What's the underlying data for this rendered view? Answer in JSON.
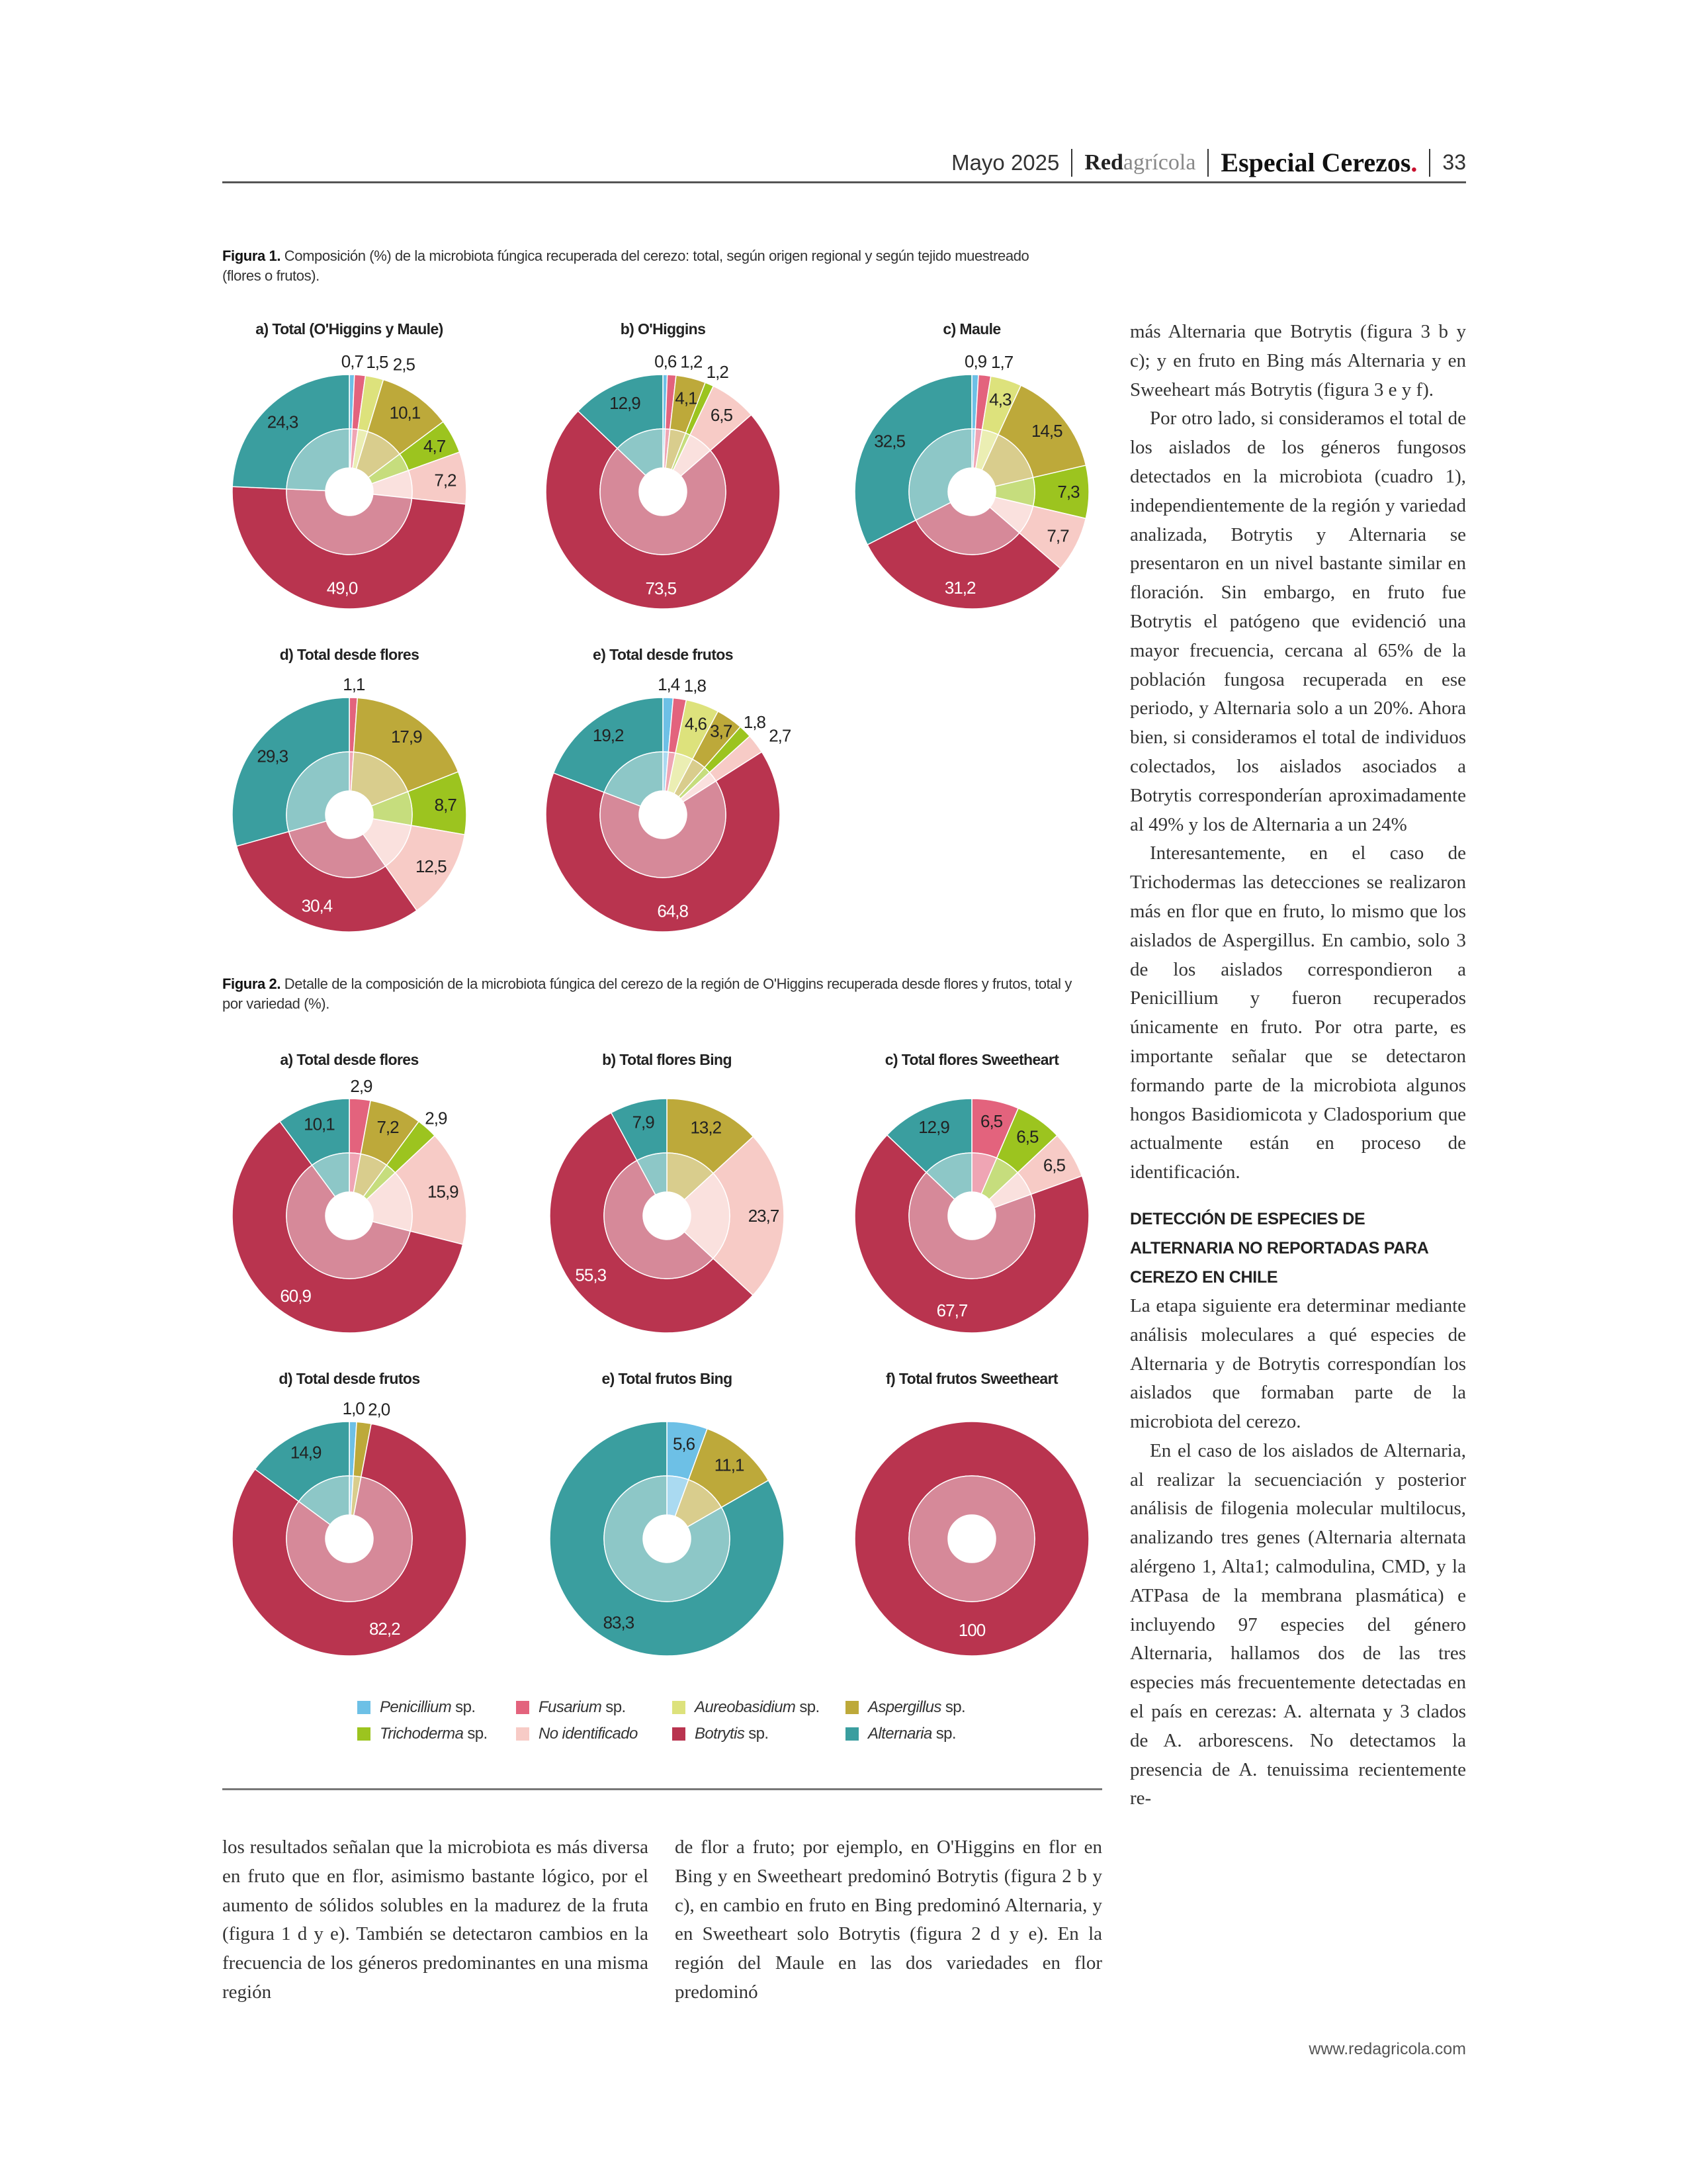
{
  "header": {
    "date": "Mayo 2025",
    "brand_bold": "Red",
    "brand_light": "agrícola",
    "section": "Especial Cerezos",
    "section_dot": ".",
    "page": "33"
  },
  "figure1": {
    "label": "Figura 1.",
    "caption": " Composición (%) de la microbiota fúngica recuperada del cerezo: total, según origen regional y según tejido muestreado (flores o frutos)."
  },
  "figure2": {
    "label": "Figura 2.",
    "caption": " Detalle de la composición de la microbiota fúngica del cerezo de la región de O'Higgins recuperada desde flores y frutos, total y por variedad (%)."
  },
  "legend": [
    {
      "name": "Penicillium",
      "suffix": " sp.",
      "color": "#6dc0e6"
    },
    {
      "name": "Fusarium",
      "suffix": " sp.",
      "color": "#e3637d"
    },
    {
      "name": "Aureobasidium",
      "suffix": " sp.",
      "color": "#dde27c"
    },
    {
      "name": "Aspergillus",
      "suffix": " sp.",
      "color": "#bda93a"
    },
    {
      "name": "Trichoderma",
      "suffix": " sp.",
      "color": "#9cc41f"
    },
    {
      "name": "No identificado",
      "suffix": "",
      "color": "#f7cbc6"
    },
    {
      "name": "Botrytis",
      "suffix": " sp.",
      "color": "#b9344f"
    },
    {
      "name": "Alternaria",
      "suffix": " sp.",
      "color": "#3a9e9f"
    }
  ],
  "chart_data": [
    {
      "type": "pie",
      "figure": 1,
      "title": "a) Total (O'Higgins y Maule)",
      "categories": [
        "Penicillium",
        "Fusarium",
        "Aureobasidium",
        "Aspergillus",
        "Trichoderma",
        "No identificado",
        "Botrytis",
        "Alternaria"
      ],
      "values": [
        0.7,
        1.5,
        2.5,
        10.1,
        4.7,
        7.2,
        49.0,
        24.3
      ],
      "labels": [
        "0,7",
        "1,5",
        "2,5",
        "10,1",
        "4,7",
        "7,2",
        "49,0",
        "24,3"
      ]
    },
    {
      "type": "pie",
      "figure": 1,
      "title": "b) O'Higgins",
      "categories": [
        "Penicillium",
        "Fusarium",
        "Aureobasidium",
        "Aspergillus",
        "Trichoderma",
        "No identificado",
        "Botrytis",
        "Alternaria"
      ],
      "values": [
        0.6,
        1.2,
        0,
        4.1,
        1.2,
        6.5,
        73.5,
        12.9
      ],
      "labels": [
        "0,6",
        "1,2",
        "",
        "4,1",
        "1,2",
        "6,5",
        "73,5",
        "12,9"
      ]
    },
    {
      "type": "pie",
      "figure": 1,
      "title": "c) Maule",
      "categories": [
        "Penicillium",
        "Fusarium",
        "Aureobasidium",
        "Aspergillus",
        "Trichoderma",
        "No identificado",
        "Botrytis",
        "Alternaria"
      ],
      "values": [
        0.9,
        1.7,
        4.3,
        14.5,
        7.3,
        7.7,
        31.2,
        32.5
      ],
      "labels": [
        "0,9",
        "1,7",
        "4,3",
        "14,5",
        "7,3",
        "7,7",
        "31,2",
        "32,5"
      ]
    },
    {
      "type": "pie",
      "figure": 1,
      "title": "d) Total desde flores",
      "categories": [
        "Penicillium",
        "Fusarium",
        "Aureobasidium",
        "Aspergillus",
        "Trichoderma",
        "No identificado",
        "Botrytis",
        "Alternaria"
      ],
      "values": [
        0,
        1.1,
        0,
        17.9,
        8.7,
        12.5,
        30.4,
        29.3
      ],
      "labels": [
        "",
        "1,1",
        "",
        "17,9",
        "8,7",
        "12,5",
        "30,4",
        "29,3"
      ]
    },
    {
      "type": "pie",
      "figure": 1,
      "title": "e) Total desde frutos",
      "categories": [
        "Penicillium",
        "Fusarium",
        "Aureobasidium",
        "Aspergillus",
        "Trichoderma",
        "No identificado",
        "Botrytis",
        "Alternaria"
      ],
      "values": [
        1.4,
        1.8,
        4.6,
        3.7,
        1.8,
        2.7,
        64.8,
        19.2
      ],
      "labels": [
        "1,4",
        "1,8",
        "4,6",
        "3,7",
        "1,8",
        "2,7",
        "64,8",
        "19,2"
      ]
    },
    {
      "type": "pie",
      "figure": 2,
      "title": "a) Total desde flores",
      "categories": [
        "Penicillium",
        "Fusarium",
        "Aureobasidium",
        "Aspergillus",
        "Trichoderma",
        "No identificado",
        "Botrytis",
        "Alternaria"
      ],
      "values": [
        0,
        2.9,
        0,
        7.2,
        2.9,
        15.9,
        60.9,
        10.1
      ],
      "labels": [
        "",
        "2,9",
        "",
        "7,2",
        "2,9",
        "15,9",
        "60,9",
        "10,1"
      ]
    },
    {
      "type": "pie",
      "figure": 2,
      "title": "b) Total flores Bing",
      "categories": [
        "Penicillium",
        "Fusarium",
        "Aureobasidium",
        "Aspergillus",
        "Trichoderma",
        "No identificado",
        "Botrytis",
        "Alternaria"
      ],
      "values": [
        0,
        0,
        0,
        13.2,
        0,
        23.7,
        55.3,
        7.9
      ],
      "labels": [
        "",
        "",
        "",
        "13,2",
        "",
        "23,7",
        "55,3",
        "7,9"
      ]
    },
    {
      "type": "pie",
      "figure": 2,
      "title": "c) Total flores Sweetheart",
      "categories": [
        "Penicillium",
        "Fusarium",
        "Aureobasidium",
        "Aspergillus",
        "Trichoderma",
        "No identificado",
        "Botrytis",
        "Alternaria"
      ],
      "values": [
        0,
        6.5,
        0,
        0,
        6.5,
        6.5,
        67.7,
        12.9
      ],
      "labels": [
        "",
        "6,5",
        "",
        "",
        "6,5",
        "6,5",
        "67,7",
        "12,9"
      ]
    },
    {
      "type": "pie",
      "figure": 2,
      "title": "d) Total desde frutos",
      "categories": [
        "Penicillium",
        "Fusarium",
        "Aureobasidium",
        "Aspergillus",
        "Trichoderma",
        "No identificado",
        "Botrytis",
        "Alternaria"
      ],
      "values": [
        1.0,
        0,
        0,
        2.0,
        0,
        0,
        82.2,
        14.9
      ],
      "labels": [
        "1,0",
        "",
        "",
        "2,0",
        "",
        "",
        "82,2",
        "14,9"
      ]
    },
    {
      "type": "pie",
      "figure": 2,
      "title": "e) Total frutos Bing",
      "categories": [
        "Penicillium",
        "Fusarium",
        "Aureobasidium",
        "Aspergillus",
        "Trichoderma",
        "No identificado",
        "Botrytis",
        "Alternaria"
      ],
      "values": [
        5.6,
        0,
        0,
        11.1,
        0,
        0,
        0,
        83.3
      ],
      "labels": [
        "5,6",
        "",
        "",
        "11,1",
        "",
        "",
        "",
        "83,3"
      ]
    },
    {
      "type": "pie",
      "figure": 2,
      "title": "f) Total frutos Sweetheart",
      "categories": [
        "Penicillium",
        "Fusarium",
        "Aureobasidium",
        "Aspergillus",
        "Trichoderma",
        "No identificado",
        "Botrytis",
        "Alternaria"
      ],
      "values": [
        0,
        0,
        0,
        0,
        0,
        0,
        100,
        0
      ],
      "labels": [
        "",
        "",
        "",
        "",
        "",
        "",
        "100",
        ""
      ]
    }
  ],
  "right_column": {
    "p1": "más Alternaria que Botrytis (figura 3 b y c); y en fruto en Bing más Alternaria y en Sweeheart más Botrytis (figura 3 e y f).",
    "p2": "Por otro lado, si consideramos el total de los aislados de los géneros fungosos detectados en la microbiota (cuadro 1), independientemente de la región y variedad analizada, Botrytis y Alternaria se presentaron en un nivel bastante similar en floración. Sin embargo, en fruto fue Botrytis el patógeno que evidenció una mayor frecuencia, cercana al 65% de la población fungosa recuperada en ese periodo, y Alternaria solo a un 20%. Ahora bien, si consideramos el total de individuos colectados, los aislados asociados a Botrytis corresponderían aproximadamente al 49% y los de Alternaria a un 24%",
    "p3": "Interesantemente, en el caso de Trichodermas las detecciones se realizaron más en flor que en fruto, lo mismo que los aislados de Aspergillus. En cambio, solo 3 de los aislados correspondieron a Penicillium y fueron recuperados únicamente en fruto. Por otra parte, es importante señalar que se detectaron formando parte de la microbiota algunos hongos Basidiomicota y Cladosporium que actualmente están en proceso de identificación.",
    "heading": "DETECCIÓN DE ESPECIES DE ALTERNARIA NO REPORTADAS PARA CEREZO EN CHILE",
    "p4": "La etapa siguiente era determinar mediante análisis moleculares a qué especies de Alternaria y de Botrytis correspondían los aislados que formaban parte de la microbiota del cerezo.",
    "p5": "En el caso de los aislados de Alternaria, al realizar la secuenciación y posterior análisis de filogenia molecular multilocus, analizando tres genes (Alternaria alternata alérgeno 1, Alta1; calmodulina, CMD, y la ATPasa de la membrana plasmática) e incluyendo 97 especies del género Alternaria, hallamos dos de las tres especies más frecuentemente detectadas en el país en cerezas: A. alternata y 3 clados de A. arborescens. No detectamos la presencia de A. tenuissima recientemente re-"
  },
  "bottom": {
    "col1": "los resultados señalan que la microbiota es más diversa en fruto que en flor, asimismo bastante lógico, por el aumento de sólidos solubles en la madurez de la fruta (figura 1 d y e). También se detectaron cambios en la frecuencia de los géneros predominantes en una misma región",
    "col2": "de flor a fruto; por ejemplo, en O'Higgins en flor en Bing y en Sweetheart predominó Botrytis (figura 2 b y c), en cambio en fruto en Bing predominó Alternaria, y en Sweetheart solo Botrytis (figura 2 d y e). En la región del Maule en las dos variedades en flor predominó"
  },
  "footer": {
    "url": "www.redagricola.com"
  }
}
